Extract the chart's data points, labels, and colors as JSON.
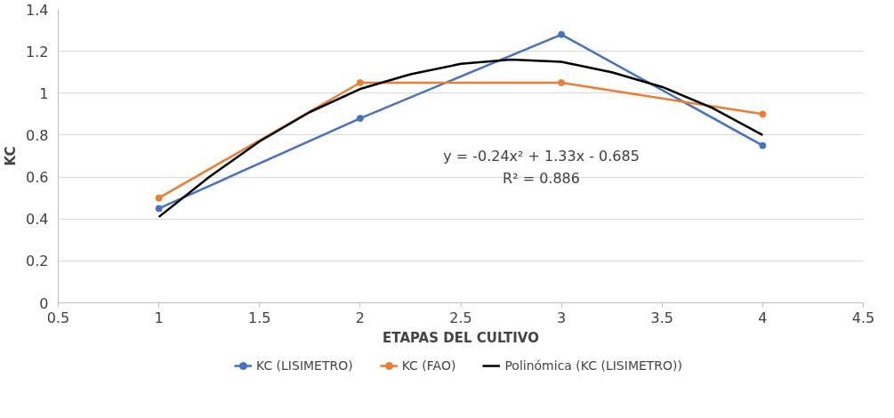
{
  "chart_data": {
    "type": "line",
    "xlabel": "ETAPAS DEL CULTIVO",
    "ylabel": "KC",
    "xlim": [
      0.5,
      4.5
    ],
    "xticks": [
      0.5,
      1,
      1.5,
      2,
      2.5,
      3,
      3.5,
      4,
      4.5
    ],
    "ylim": [
      0,
      1.4
    ],
    "yticks": [
      0,
      0.2,
      0.4,
      0.6,
      0.8,
      1,
      1.2,
      1.4
    ],
    "grid": "y",
    "legend": "bottom",
    "series": [
      {
        "name": "KC (LISIMETRO)",
        "color": "#4472c4",
        "marker": "circle",
        "x": [
          1,
          2,
          3,
          4
        ],
        "values": [
          0.45,
          0.88,
          1.28,
          0.75
        ]
      },
      {
        "name": "KC (FAO)",
        "color": "#ed7d31",
        "marker": "circle",
        "x": [
          1,
          2,
          3,
          4
        ],
        "values": [
          0.5,
          1.05,
          1.05,
          0.9
        ]
      },
      {
        "name": "Polinómica (KC (LISIMETRO))",
        "color": "#000000",
        "marker": "none",
        "x": [
          1,
          1.25,
          1.5,
          1.75,
          2,
          2.25,
          2.5,
          2.75,
          3,
          3.25,
          3.5,
          3.75,
          4
        ],
        "values": [
          0.41,
          0.6,
          0.77,
          0.91,
          1.02,
          1.09,
          1.14,
          1.16,
          1.15,
          1.1,
          1.03,
          0.93,
          0.8
        ]
      }
    ],
    "annotations": [
      "y = -0.24x² + 1.33x - 0.685",
      "R² = 0.886"
    ]
  }
}
